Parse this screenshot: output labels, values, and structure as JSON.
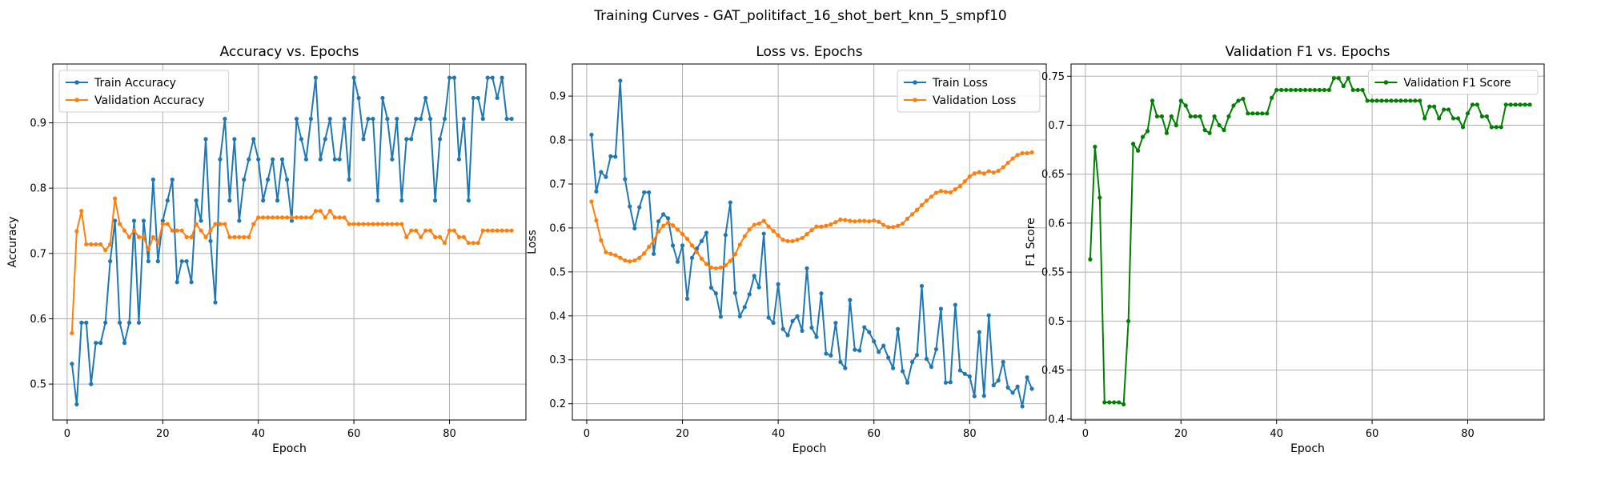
{
  "figure": {
    "suptitle": "Training Curves - GAT_politifact_16_shot_bert_knn_5_smpf10"
  },
  "chart_data": [
    {
      "type": "line",
      "title": "Accuracy vs. Epochs",
      "xlabel": "Epoch",
      "ylabel": "Accuracy",
      "xlim": [
        -3,
        96
      ],
      "ylim": [
        0.445,
        0.99
      ],
      "xticks": [
        0,
        20,
        40,
        60,
        80
      ],
      "yticks": [
        0.5,
        0.6,
        0.7,
        0.8,
        0.9
      ],
      "grid": true,
      "legend": "upper-left",
      "series": [
        {
          "name": "Train Accuracy",
          "color": "#1f77b4",
          "values": [
            0.531,
            0.469,
            0.594,
            0.594,
            0.5,
            0.563,
            0.563,
            0.594,
            0.688,
            0.75,
            0.594,
            0.563,
            0.594,
            0.75,
            0.594,
            0.75,
            0.688,
            0.813,
            0.688,
            0.75,
            0.781,
            0.813,
            0.656,
            0.688,
            0.688,
            0.656,
            0.781,
            0.75,
            0.875,
            0.719,
            0.625,
            0.844,
            0.906,
            0.781,
            0.875,
            0.75,
            0.813,
            0.844,
            0.875,
            0.844,
            0.781,
            0.813,
            0.844,
            0.781,
            0.844,
            0.813,
            0.75,
            0.906,
            0.875,
            0.844,
            0.906,
            0.969,
            0.844,
            0.875,
            0.906,
            0.844,
            0.844,
            0.906,
            0.813,
            0.969,
            0.938,
            0.875,
            0.906,
            0.906,
            0.781,
            0.938,
            0.906,
            0.844,
            0.906,
            0.781,
            0.875,
            0.875,
            0.906,
            0.906,
            0.938,
            0.906,
            0.781,
            0.875,
            0.906,
            0.969,
            0.969,
            0.844,
            0.906,
            0.781,
            0.938,
            0.938,
            0.906,
            0.969,
            0.969,
            0.938,
            0.969,
            0.906,
            0.906
          ]
        },
        {
          "name": "Validation Accuracy",
          "color": "#ff7f0e",
          "values": [
            0.578,
            0.734,
            0.765,
            0.714,
            0.714,
            0.714,
            0.714,
            0.705,
            0.714,
            0.784,
            0.745,
            0.735,
            0.725,
            0.735,
            0.725,
            0.725,
            0.706,
            0.725,
            0.716,
            0.745,
            0.745,
            0.735,
            0.735,
            0.735,
            0.725,
            0.725,
            0.745,
            0.735,
            0.725,
            0.735,
            0.745,
            0.745,
            0.745,
            0.725,
            0.725,
            0.725,
            0.725,
            0.725,
            0.745,
            0.755,
            0.755,
            0.755,
            0.755,
            0.755,
            0.755,
            0.755,
            0.755,
            0.755,
            0.755,
            0.755,
            0.755,
            0.765,
            0.765,
            0.755,
            0.765,
            0.755,
            0.755,
            0.755,
            0.745,
            0.745,
            0.745,
            0.745,
            0.745,
            0.745,
            0.745,
            0.745,
            0.745,
            0.745,
            0.745,
            0.745,
            0.725,
            0.735,
            0.735,
            0.725,
            0.735,
            0.735,
            0.725,
            0.725,
            0.716,
            0.735,
            0.735,
            0.725,
            0.725,
            0.716,
            0.716,
            0.716,
            0.735,
            0.735,
            0.735,
            0.735,
            0.735,
            0.735,
            0.735
          ]
        }
      ]
    },
    {
      "type": "line",
      "title": "Loss vs. Epochs",
      "xlabel": "Epoch",
      "ylabel": "Loss",
      "xlim": [
        -3,
        96
      ],
      "ylim": [
        0.163,
        0.973
      ],
      "xticks": [
        0,
        20,
        40,
        60,
        80
      ],
      "yticks": [
        0.2,
        0.3,
        0.4,
        0.5,
        0.6,
        0.7,
        0.8,
        0.9
      ],
      "grid": true,
      "legend": "upper-right",
      "series": [
        {
          "name": "Train Loss",
          "color": "#1f77b4",
          "values": [
            0.812,
            0.683,
            0.727,
            0.716,
            0.763,
            0.762,
            0.935,
            0.711,
            0.649,
            0.599,
            0.647,
            0.681,
            0.681,
            0.541,
            0.615,
            0.631,
            0.622,
            0.56,
            0.523,
            0.56,
            0.439,
            0.532,
            0.553,
            0.57,
            0.589,
            0.464,
            0.451,
            0.398,
            0.584,
            0.658,
            0.452,
            0.399,
            0.42,
            0.449,
            0.491,
            0.465,
            0.587,
            0.396,
            0.384,
            0.472,
            0.37,
            0.356,
            0.388,
            0.399,
            0.366,
            0.508,
            0.373,
            0.352,
            0.451,
            0.314,
            0.31,
            0.384,
            0.295,
            0.281,
            0.436,
            0.323,
            0.321,
            0.374,
            0.363,
            0.342,
            0.318,
            0.332,
            0.305,
            0.281,
            0.37,
            0.274,
            0.248,
            0.295,
            0.311,
            0.468,
            0.302,
            0.284,
            0.324,
            0.416,
            0.248,
            0.249,
            0.425,
            0.276,
            0.268,
            0.262,
            0.217,
            0.363,
            0.218,
            0.401,
            0.242,
            0.253,
            0.295,
            0.237,
            0.225,
            0.239,
            0.194,
            0.26,
            0.234
          ]
        },
        {
          "name": "Validation Loss",
          "color": "#ff7f0e",
          "values": [
            0.66,
            0.617,
            0.572,
            0.545,
            0.541,
            0.538,
            0.532,
            0.526,
            0.524,
            0.526,
            0.532,
            0.542,
            0.557,
            0.572,
            0.592,
            0.605,
            0.612,
            0.606,
            0.596,
            0.586,
            0.575,
            0.56,
            0.545,
            0.53,
            0.518,
            0.51,
            0.508,
            0.51,
            0.515,
            0.525,
            0.54,
            0.562,
            0.581,
            0.597,
            0.607,
            0.61,
            0.616,
            0.603,
            0.593,
            0.583,
            0.573,
            0.57,
            0.57,
            0.573,
            0.577,
            0.586,
            0.595,
            0.603,
            0.603,
            0.605,
            0.608,
            0.613,
            0.619,
            0.618,
            0.616,
            0.615,
            0.616,
            0.616,
            0.615,
            0.617,
            0.614,
            0.607,
            0.602,
            0.602,
            0.605,
            0.61,
            0.621,
            0.631,
            0.641,
            0.652,
            0.662,
            0.671,
            0.68,
            0.684,
            0.682,
            0.681,
            0.688,
            0.695,
            0.706,
            0.717,
            0.724,
            0.727,
            0.724,
            0.729,
            0.726,
            0.73,
            0.738,
            0.748,
            0.758,
            0.766,
            0.77,
            0.77,
            0.772
          ]
        }
      ]
    },
    {
      "type": "line",
      "title": "Validation F1 vs. Epochs",
      "xlabel": "Epoch",
      "ylabel": "F1 Score",
      "xlim": [
        -3,
        96
      ],
      "ylim": [
        0.399,
        0.7625
      ],
      "xticks": [
        0,
        20,
        40,
        60,
        80
      ],
      "yticks": [
        0.4,
        0.45,
        0.5,
        0.55,
        0.6,
        0.65,
        0.7,
        0.75
      ],
      "grid": true,
      "legend": "upper-right",
      "series": [
        {
          "name": "Validation F1 Score",
          "color": "#008000",
          "values": [
            0.563,
            0.678,
            0.626,
            0.417,
            0.417,
            0.417,
            0.417,
            0.415,
            0.5,
            0.681,
            0.674,
            0.688,
            0.694,
            0.725,
            0.709,
            0.709,
            0.692,
            0.709,
            0.7,
            0.725,
            0.72,
            0.709,
            0.709,
            0.709,
            0.695,
            0.692,
            0.709,
            0.7,
            0.695,
            0.709,
            0.72,
            0.725,
            0.727,
            0.712,
            0.712,
            0.712,
            0.712,
            0.712,
            0.728,
            0.736,
            0.736,
            0.736,
            0.736,
            0.736,
            0.736,
            0.736,
            0.736,
            0.736,
            0.736,
            0.736,
            0.736,
            0.748,
            0.748,
            0.74,
            0.748,
            0.736,
            0.736,
            0.736,
            0.725,
            0.725,
            0.725,
            0.725,
            0.725,
            0.725,
            0.725,
            0.725,
            0.725,
            0.725,
            0.725,
            0.725,
            0.707,
            0.719,
            0.719,
            0.707,
            0.716,
            0.716,
            0.707,
            0.707,
            0.698,
            0.712,
            0.721,
            0.721,
            0.709,
            0.709,
            0.698,
            0.698,
            0.698,
            0.721,
            0.721,
            0.721,
            0.721,
            0.721,
            0.721
          ]
        }
      ]
    }
  ]
}
